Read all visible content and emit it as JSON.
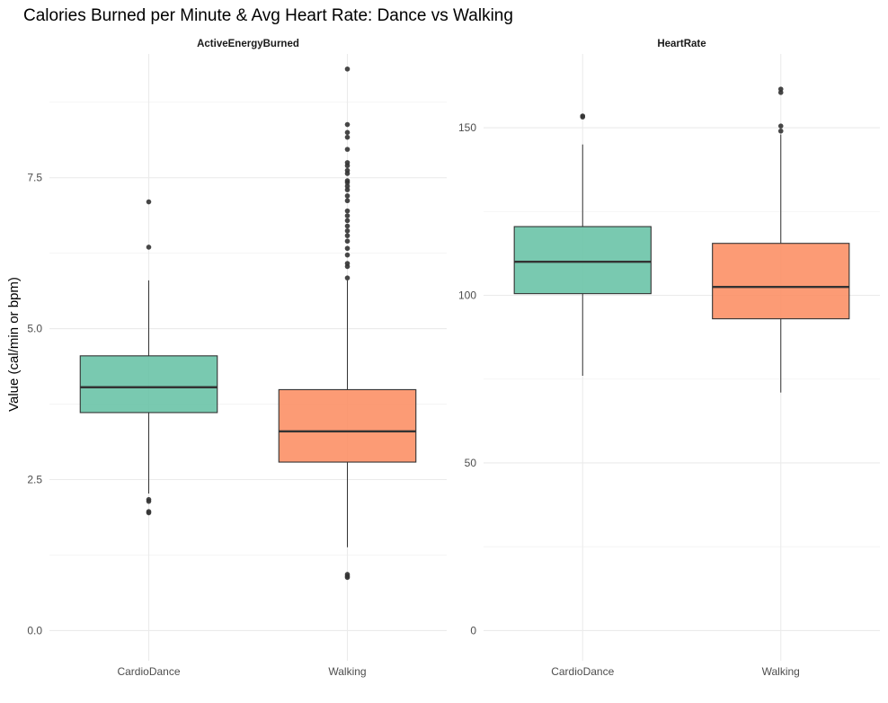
{
  "chart_data": {
    "type": "boxplot",
    "title": "Calories Burned per Minute & Avg Heart Rate: Dance vs Walking",
    "ylabel": "Value (cal/min or bpm)",
    "xlabel": "",
    "categories": [
      "CardioDance",
      "Walking"
    ],
    "colors": {
      "CardioDance": "#66c2a5",
      "Walking": "#fc8d62"
    },
    "grid": true,
    "facets": [
      {
        "name": "ActiveEnergyBurned",
        "ylim": [
          -0.5,
          9.55
        ],
        "yticks": [
          0.0,
          2.5,
          5.0,
          7.5
        ],
        "ytick_labels": [
          "0.0",
          "2.5",
          "5.0",
          "7.5"
        ],
        "boxes": [
          {
            "category": "CardioDance",
            "whisker_low": 2.27,
            "q1": 3.61,
            "median": 4.03,
            "q3": 4.55,
            "whisker_high": 5.8,
            "outliers": [
              7.1,
              6.35,
              2.17,
              2.14,
              1.97,
              1.95
            ]
          },
          {
            "category": "Walking",
            "whisker_low": 1.38,
            "q1": 2.79,
            "median": 3.3,
            "q3": 3.99,
            "whisker_high": 5.8,
            "outliers": [
              9.3,
              8.38,
              8.25,
              8.17,
              7.97,
              7.75,
              7.7,
              7.62,
              7.57,
              7.45,
              7.42,
              7.36,
              7.3,
              7.2,
              7.12,
              6.95,
              6.87,
              6.79,
              6.7,
              6.62,
              6.54,
              6.45,
              6.33,
              6.22,
              6.08,
              6.03,
              5.84,
              0.93,
              0.9,
              0.88
            ]
          }
        ]
      },
      {
        "name": "HeartRate",
        "ylim": [
          -9,
          172
        ],
        "yticks": [
          0,
          50,
          100,
          150
        ],
        "ytick_labels": [
          "0",
          "50",
          "100",
          "150"
        ],
        "boxes": [
          {
            "category": "CardioDance",
            "whisker_low": 76,
            "q1": 100.5,
            "median": 110,
            "q3": 120.5,
            "whisker_high": 145,
            "outliers": [
              153.5,
              153.2
            ]
          },
          {
            "category": "Walking",
            "whisker_low": 71,
            "q1": 93,
            "median": 102.5,
            "q3": 115.5,
            "whisker_high": 148,
            "outliers": [
              161.5,
              160.5,
              150.5,
              149
            ]
          }
        ]
      }
    ]
  }
}
